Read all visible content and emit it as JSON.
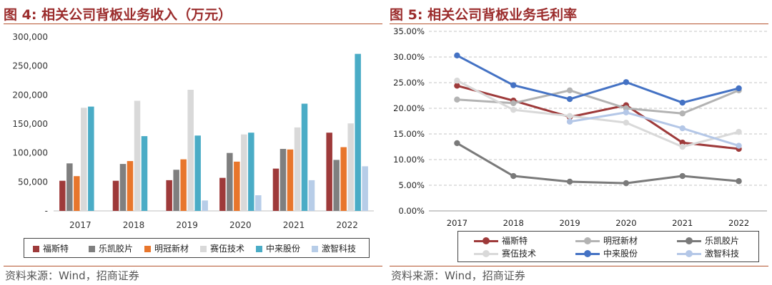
{
  "left": {
    "fig_label": "图 4:",
    "title": "相关公司背板业务收入（万元）",
    "source": "资料来源：Wind，招商证券"
  },
  "right": {
    "fig_label": "图 5:",
    "title": "相关公司背板业务毛利率",
    "source": "资料来源：Wind，招商证券"
  },
  "chart_data": [
    {
      "type": "bar",
      "title": "相关公司背板业务收入（万元）",
      "categories": [
        "2017",
        "2018",
        "2019",
        "2020",
        "2021",
        "2022"
      ],
      "ylim": [
        0,
        300000
      ],
      "yticks": [
        0,
        50000,
        100000,
        150000,
        200000,
        250000,
        300000
      ],
      "ytick_labels": [
        "-",
        "50,000",
        "100,000",
        "150,000",
        "200,000",
        "250,000",
        "300,000"
      ],
      "legend_position": "bottom",
      "series": [
        {
          "name": "福斯特",
          "color": "#9e3a3a",
          "values": [
            52000,
            52000,
            53000,
            57000,
            73000,
            135000
          ]
        },
        {
          "name": "乐凯胶片",
          "color": "#7f7f7f",
          "values": [
            82000,
            81000,
            71000,
            100000,
            107000,
            88000
          ]
        },
        {
          "name": "明冠新材",
          "color": "#e8762c",
          "values": [
            60000,
            86000,
            89000,
            85000,
            106000,
            110000
          ]
        },
        {
          "name": "赛伍技术",
          "color": "#d9d9d9",
          "values": [
            178000,
            190000,
            209000,
            132000,
            144000,
            151000
          ]
        },
        {
          "name": "中来股份",
          "color": "#4aacc6",
          "values": [
            180000,
            129000,
            130000,
            135000,
            185000,
            271000
          ]
        },
        {
          "name": "激智科技",
          "color": "#b7cde8",
          "values": [
            0,
            0,
            18000,
            27000,
            53000,
            77000
          ]
        }
      ]
    },
    {
      "type": "line",
      "title": "相关公司背板业务毛利率",
      "categories": [
        "2017",
        "2018",
        "2019",
        "2020",
        "2021",
        "2022"
      ],
      "ylim": [
        0,
        35
      ],
      "yticks": [
        0,
        5,
        10,
        15,
        20,
        25,
        30,
        35
      ],
      "ytick_labels": [
        "0.00%",
        "5.00%",
        "10.00%",
        "15.00%",
        "20.00%",
        "25.00%",
        "30.00%",
        "35.00%"
      ],
      "ylabel_unit": "%",
      "grid": true,
      "legend_position": "bottom",
      "series": [
        {
          "name": "福斯特",
          "color": "#9e3a3a",
          "values": [
            24.4,
            21.5,
            18.3,
            20.6,
            13.3,
            12.1
          ]
        },
        {
          "name": "明冠新材",
          "color": "#b3b3b3",
          "values": [
            21.7,
            21.0,
            23.5,
            20.0,
            19.0,
            23.5
          ]
        },
        {
          "name": "乐凯胶片",
          "color": "#7a7a7a",
          "values": [
            13.2,
            6.8,
            5.7,
            5.4,
            6.8,
            5.8
          ]
        },
        {
          "name": "赛伍技术",
          "color": "#d9d9d9",
          "values": [
            25.4,
            19.7,
            18.5,
            17.2,
            12.5,
            15.4
          ]
        },
        {
          "name": "中来股份",
          "color": "#4472c4",
          "values": [
            30.3,
            24.5,
            21.8,
            25.1,
            21.1,
            23.9
          ]
        },
        {
          "name": "激智科技",
          "color": "#b4c7e7",
          "values": [
            null,
            null,
            17.4,
            19.2,
            16.1,
            12.7
          ]
        }
      ]
    }
  ]
}
